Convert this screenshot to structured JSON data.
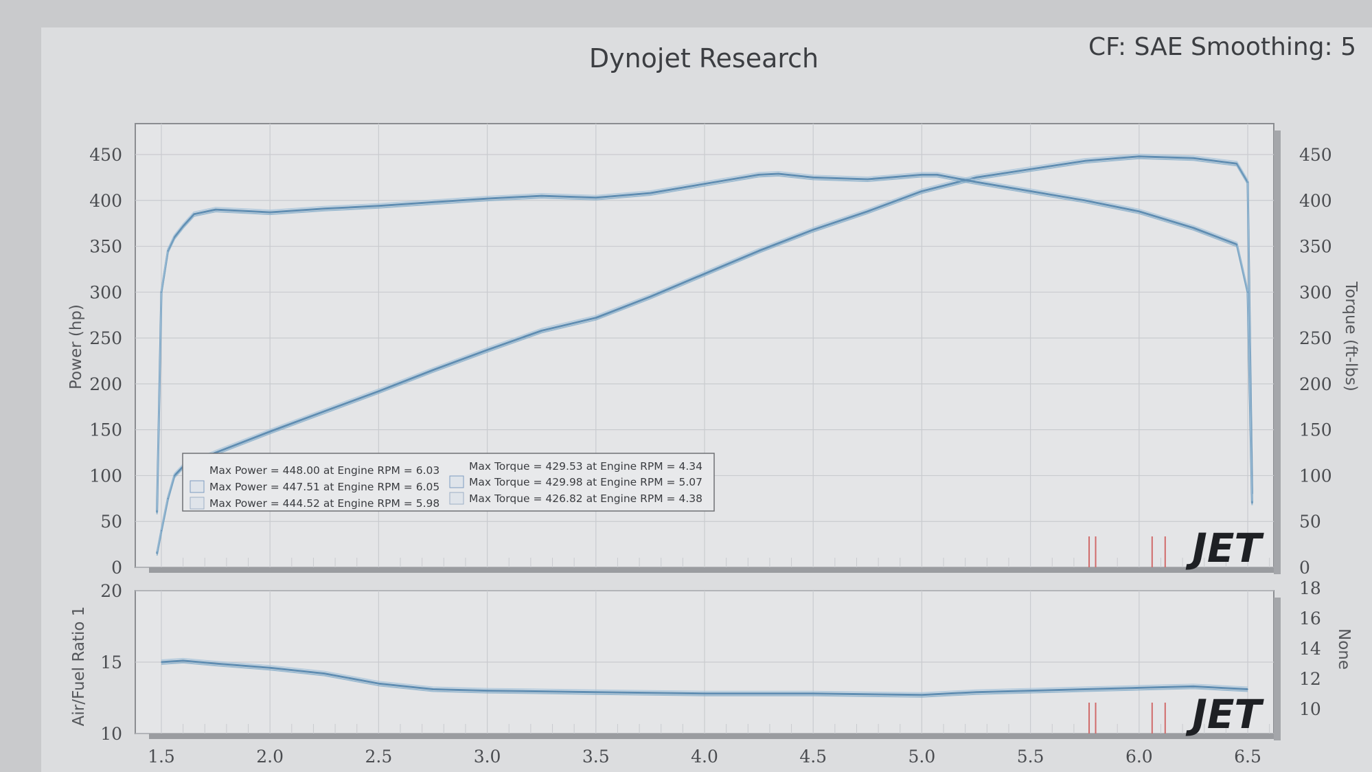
{
  "header": {
    "title": "Dynojet Research",
    "correction": "CF: SAE Smoothing: 5"
  },
  "colors": {
    "paper": "#dcdddf",
    "plot_bg": "#e4e5e7",
    "grid": "#c9cbcf",
    "series": "#7fa9c8",
    "series_dark": "#5f8db2",
    "frame": "#8a8c90",
    "marker_red": "#d06a6a",
    "logo": "#1e2024"
  },
  "logo_text": "JET",
  "chart_data": [
    {
      "type": "line",
      "title": "Dynojet Research",
      "xlabel": "",
      "x_ticks": [
        "1.5",
        "2.0",
        "2.5",
        "3.0",
        "3.5",
        "4.0",
        "4.5",
        "5.0",
        "5.5",
        "6.0",
        "6.5"
      ],
      "xlim": [
        1.38,
        6.62
      ],
      "ylabel": "Power (hp)",
      "ylim": [
        0,
        490
      ],
      "y_ticks": [
        "0",
        "50",
        "100",
        "150",
        "200",
        "250",
        "300",
        "350",
        "400",
        "450"
      ],
      "y2label": "Torque (ft-lbs)",
      "y2lim": [
        0,
        490
      ],
      "y2_ticks": [
        "0",
        "50",
        "100",
        "150",
        "200",
        "250",
        "300",
        "350",
        "400",
        "450"
      ],
      "grid": true,
      "legend_placement": "bottom-left",
      "legend": [
        "Max Power = 448.00 at Engine RPM = 6.03",
        "Max Power = 447.51 at Engine RPM = 6.05",
        "Max Power = 444.52 at Engine RPM = 5.98",
        "Max Torque = 429.53 at Engine RPM = 4.34",
        "Max Torque = 429.98 at Engine RPM = 5.07",
        "Max Torque = 426.82 at Engine RPM = 4.38"
      ],
      "series": [
        {
          "axis": "left",
          "x": [
            1.48,
            1.5,
            1.53,
            1.56,
            1.6,
            1.75,
            2.0,
            2.25,
            2.5,
            2.75,
            3.0,
            3.25,
            3.5,
            3.75,
            4.0,
            4.25,
            4.5,
            4.75,
            5.0,
            5.25,
            5.5,
            5.75,
            6.0,
            6.25,
            6.45,
            6.5,
            6.52
          ],
          "y": [
            15,
            40,
            75,
            100,
            110,
            125,
            148,
            170,
            192,
            215,
            237,
            258,
            272,
            295,
            320,
            345,
            368,
            388,
            410,
            425,
            434,
            443,
            448,
            446,
            440,
            420,
            80
          ]
        },
        {
          "axis": "right",
          "x": [
            1.48,
            1.5,
            1.53,
            1.56,
            1.6,
            1.65,
            1.75,
            2.0,
            2.25,
            2.5,
            2.75,
            3.0,
            3.25,
            3.5,
            3.75,
            4.0,
            4.25,
            4.34,
            4.5,
            4.75,
            5.0,
            5.07,
            5.25,
            5.5,
            5.75,
            6.0,
            6.25,
            6.45,
            6.5,
            6.52
          ],
          "y": [
            60,
            300,
            345,
            360,
            372,
            385,
            390,
            387,
            391,
            394,
            398,
            402,
            405,
            403,
            408,
            418,
            428,
            429,
            425,
            423,
            428,
            428,
            420,
            410,
            400,
            388,
            370,
            352,
            300,
            70
          ]
        }
      ]
    },
    {
      "type": "line",
      "xlabel": "",
      "x_ticks": [
        "1.5",
        "2.0",
        "2.5",
        "3.0",
        "3.5",
        "4.0",
        "4.5",
        "5.0",
        "5.5",
        "6.0",
        "6.5"
      ],
      "xlim": [
        1.38,
        6.62
      ],
      "ylabel": "Air/Fuel Ratio 1",
      "ylim": [
        10,
        20
      ],
      "y_ticks": [
        "10",
        "15",
        "20"
      ],
      "y2label": "None",
      "y2_ticks": [
        "10",
        "12",
        "14",
        "16",
        "18"
      ],
      "grid": true,
      "series": [
        {
          "x": [
            1.5,
            1.6,
            1.75,
            2.0,
            2.25,
            2.5,
            2.75,
            3.0,
            3.5,
            4.0,
            4.5,
            5.0,
            5.25,
            5.5,
            5.75,
            6.0,
            6.25,
            6.5
          ],
          "y": [
            15.0,
            15.1,
            14.9,
            14.6,
            14.2,
            13.5,
            13.1,
            13.0,
            12.9,
            12.8,
            12.8,
            12.7,
            12.9,
            13.0,
            13.1,
            13.2,
            13.3,
            13.1
          ]
        }
      ]
    }
  ]
}
